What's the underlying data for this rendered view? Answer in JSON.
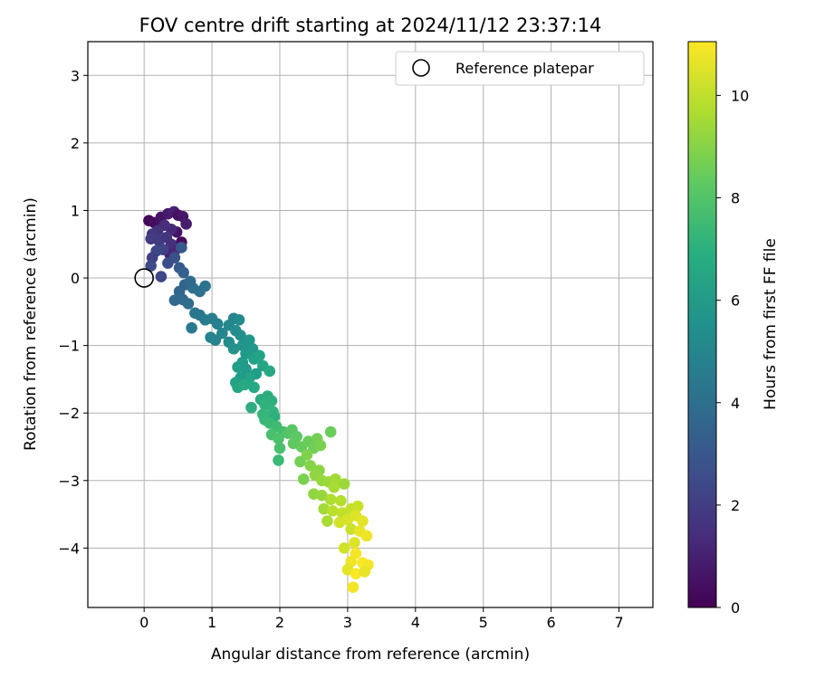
{
  "chart_data": {
    "type": "scatter",
    "title": "FOV centre drift starting at 2024/11/12 23:37:14",
    "xlabel": "Angular distance from reference (arcmin)",
    "ylabel": "Rotation from reference (arcmin)",
    "xlim": [
      -0.83,
      7.5
    ],
    "ylim": [
      -4.88,
      3.5
    ],
    "xticks": [
      "0",
      "1",
      "2",
      "3",
      "4",
      "5",
      "6",
      "7"
    ],
    "yticks": [
      "3",
      "2",
      "1",
      "0",
      "−1",
      "−2",
      "−3",
      "−4"
    ],
    "grid": true,
    "legend": {
      "placement": "top-right",
      "entries": [
        "Reference platepar"
      ]
    },
    "reference_point": {
      "x": 0,
      "y": 0
    },
    "colorbar": {
      "label": "Hours from first FF file",
      "range": [
        0,
        11.05
      ],
      "ticks": [
        "0",
        "2",
        "4",
        "6",
        "8",
        "10"
      ],
      "colormap": "viridis"
    },
    "points": [
      {
        "x": 0.07,
        "y": 0.85,
        "h": 0.2
      },
      {
        "x": 0.15,
        "y": 0.82,
        "h": 0.4
      },
      {
        "x": 0.25,
        "y": 0.9,
        "h": 0.6
      },
      {
        "x": 0.35,
        "y": 0.95,
        "h": 0.8
      },
      {
        "x": 0.44,
        "y": 0.98,
        "h": 1.0
      },
      {
        "x": 0.5,
        "y": 0.93,
        "h": 0.5
      },
      {
        "x": 0.57,
        "y": 0.91,
        "h": 0.7
      },
      {
        "x": 0.62,
        "y": 0.8,
        "h": 0.9
      },
      {
        "x": 0.55,
        "y": 0.53,
        "h": 0.3
      },
      {
        "x": 0.48,
        "y": 0.68,
        "h": 0.6
      },
      {
        "x": 0.4,
        "y": 0.72,
        "h": 1.2
      },
      {
        "x": 0.3,
        "y": 0.78,
        "h": 1.4
      },
      {
        "x": 0.2,
        "y": 0.7,
        "h": 1.6
      },
      {
        "x": 0.12,
        "y": 0.65,
        "h": 1.8
      },
      {
        "x": 0.1,
        "y": 0.58,
        "h": 2.0
      },
      {
        "x": 0.22,
        "y": 0.55,
        "h": 1.9
      },
      {
        "x": 0.33,
        "y": 0.6,
        "h": 1.7
      },
      {
        "x": 0.4,
        "y": 0.5,
        "h": 1.5
      },
      {
        "x": 0.45,
        "y": 0.4,
        "h": 1.3
      },
      {
        "x": 0.38,
        "y": 0.35,
        "h": 1.1
      },
      {
        "x": 0.28,
        "y": 0.42,
        "h": 2.2
      },
      {
        "x": 0.18,
        "y": 0.4,
        "h": 2.4
      },
      {
        "x": 0.12,
        "y": 0.3,
        "h": 2.1
      },
      {
        "x": 0.1,
        "y": 0.18,
        "h": 2.5
      },
      {
        "x": 0.25,
        "y": 0.02,
        "h": 2.3
      },
      {
        "x": 0.35,
        "y": 0.22,
        "h": 2.6
      },
      {
        "x": 0.45,
        "y": 0.3,
        "h": 2.8
      },
      {
        "x": 0.55,
        "y": 0.45,
        "h": 3.0
      },
      {
        "x": 0.52,
        "y": 0.15,
        "h": 3.1
      },
      {
        "x": 0.58,
        "y": 0.08,
        "h": 3.3
      },
      {
        "x": 0.6,
        "y": -0.1,
        "h": 3.5
      },
      {
        "x": 0.52,
        "y": -0.2,
        "h": 3.6
      },
      {
        "x": 0.45,
        "y": -0.33,
        "h": 3.7
      },
      {
        "x": 0.57,
        "y": -0.32,
        "h": 3.8
      },
      {
        "x": 0.65,
        "y": -0.38,
        "h": 3.9
      },
      {
        "x": 0.72,
        "y": -0.15,
        "h": 4.0
      },
      {
        "x": 0.68,
        "y": -0.05,
        "h": 3.8
      },
      {
        "x": 0.82,
        "y": -0.2,
        "h": 4.1
      },
      {
        "x": 0.9,
        "y": -0.12,
        "h": 4.2
      },
      {
        "x": 0.75,
        "y": -0.52,
        "h": 4.3
      },
      {
        "x": 0.7,
        "y": -0.74,
        "h": 4.5
      },
      {
        "x": 0.82,
        "y": -0.55,
        "h": 4.4
      },
      {
        "x": 0.9,
        "y": -0.62,
        "h": 4.6
      },
      {
        "x": 1.0,
        "y": -0.6,
        "h": 4.7
      },
      {
        "x": 1.08,
        "y": -0.68,
        "h": 4.8
      },
      {
        "x": 0.98,
        "y": -0.88,
        "h": 4.9
      },
      {
        "x": 1.05,
        "y": -0.92,
        "h": 5.0
      },
      {
        "x": 1.15,
        "y": -0.82,
        "h": 5.1
      },
      {
        "x": 1.25,
        "y": -0.7,
        "h": 5.2
      },
      {
        "x": 1.32,
        "y": -0.6,
        "h": 5.0
      },
      {
        "x": 1.4,
        "y": -0.62,
        "h": 5.3
      },
      {
        "x": 1.35,
        "y": -0.78,
        "h": 5.4
      },
      {
        "x": 1.42,
        "y": -0.85,
        "h": 5.5
      },
      {
        "x": 1.25,
        "y": -0.95,
        "h": 5.3
      },
      {
        "x": 1.32,
        "y": -1.05,
        "h": 5.6
      },
      {
        "x": 1.45,
        "y": -1.0,
        "h": 5.7
      },
      {
        "x": 1.55,
        "y": -0.92,
        "h": 5.8
      },
      {
        "x": 1.6,
        "y": -1.05,
        "h": 5.9
      },
      {
        "x": 1.5,
        "y": -1.12,
        "h": 6.0
      },
      {
        "x": 1.45,
        "y": -1.25,
        "h": 6.1
      },
      {
        "x": 1.38,
        "y": -1.32,
        "h": 6.2
      },
      {
        "x": 1.5,
        "y": -1.35,
        "h": 6.0
      },
      {
        "x": 1.62,
        "y": -1.2,
        "h": 6.3
      },
      {
        "x": 1.7,
        "y": -1.15,
        "h": 6.4
      },
      {
        "x": 1.75,
        "y": -1.3,
        "h": 6.5
      },
      {
        "x": 1.85,
        "y": -1.38,
        "h": 6.6
      },
      {
        "x": 1.65,
        "y": -1.42,
        "h": 6.2
      },
      {
        "x": 1.55,
        "y": -1.48,
        "h": 6.4
      },
      {
        "x": 1.42,
        "y": -1.48,
        "h": 6.1
      },
      {
        "x": 1.35,
        "y": -1.55,
        "h": 6.3
      },
      {
        "x": 1.38,
        "y": -1.62,
        "h": 6.5
      },
      {
        "x": 1.48,
        "y": -1.58,
        "h": 6.7
      },
      {
        "x": 1.62,
        "y": -1.62,
        "h": 6.6
      },
      {
        "x": 1.72,
        "y": -1.8,
        "h": 6.8
      },
      {
        "x": 1.82,
        "y": -1.75,
        "h": 6.9
      },
      {
        "x": 1.88,
        "y": -1.82,
        "h": 7.0
      },
      {
        "x": 1.78,
        "y": -1.88,
        "h": 7.1
      },
      {
        "x": 1.58,
        "y": -1.92,
        "h": 6.9
      },
      {
        "x": 1.9,
        "y": -1.98,
        "h": 7.2
      },
      {
        "x": 1.75,
        "y": -2.02,
        "h": 7.3
      },
      {
        "x": 1.78,
        "y": -2.1,
        "h": 7.4
      },
      {
        "x": 1.92,
        "y": -2.05,
        "h": 7.0
      },
      {
        "x": 1.85,
        "y": -2.15,
        "h": 7.5
      },
      {
        "x": 1.95,
        "y": -2.2,
        "h": 7.6
      },
      {
        "x": 2.05,
        "y": -2.28,
        "h": 7.7
      },
      {
        "x": 1.88,
        "y": -2.32,
        "h": 7.8
      },
      {
        "x": 1.98,
        "y": -2.38,
        "h": 7.9
      },
      {
        "x": 2.12,
        "y": -2.3,
        "h": 8.0
      },
      {
        "x": 2.18,
        "y": -2.25,
        "h": 8.1
      },
      {
        "x": 2.25,
        "y": -2.35,
        "h": 8.2
      },
      {
        "x": 2.0,
        "y": -2.52,
        "h": 7.8
      },
      {
        "x": 1.98,
        "y": -2.7,
        "h": 7.5
      },
      {
        "x": 2.2,
        "y": -2.45,
        "h": 8.3
      },
      {
        "x": 2.32,
        "y": -2.5,
        "h": 8.4
      },
      {
        "x": 2.42,
        "y": -2.42,
        "h": 8.5
      },
      {
        "x": 2.5,
        "y": -2.52,
        "h": 8.6
      },
      {
        "x": 2.55,
        "y": -2.38,
        "h": 8.7
      },
      {
        "x": 2.6,
        "y": -2.48,
        "h": 8.8
      },
      {
        "x": 2.75,
        "y": -2.28,
        "h": 8.5
      },
      {
        "x": 2.4,
        "y": -2.62,
        "h": 8.9
      },
      {
        "x": 2.3,
        "y": -2.72,
        "h": 8.7
      },
      {
        "x": 2.45,
        "y": -2.78,
        "h": 9.0
      },
      {
        "x": 2.58,
        "y": -2.85,
        "h": 9.1
      },
      {
        "x": 2.35,
        "y": -2.98,
        "h": 8.8
      },
      {
        "x": 2.52,
        "y": -2.92,
        "h": 9.2
      },
      {
        "x": 2.62,
        "y": -3.0,
        "h": 9.3
      },
      {
        "x": 2.72,
        "y": -3.02,
        "h": 9.4
      },
      {
        "x": 2.82,
        "y": -2.98,
        "h": 9.5
      },
      {
        "x": 2.8,
        "y": -3.1,
        "h": 9.6
      },
      {
        "x": 2.95,
        "y": -3.05,
        "h": 9.4
      },
      {
        "x": 2.5,
        "y": -3.2,
        "h": 9.2
      },
      {
        "x": 2.62,
        "y": -3.22,
        "h": 9.3
      },
      {
        "x": 2.75,
        "y": -3.28,
        "h": 9.7
      },
      {
        "x": 2.9,
        "y": -3.3,
        "h": 9.8
      },
      {
        "x": 2.65,
        "y": -3.42,
        "h": 9.5
      },
      {
        "x": 2.78,
        "y": -3.45,
        "h": 9.9
      },
      {
        "x": 2.92,
        "y": -3.48,
        "h": 10.0
      },
      {
        "x": 3.05,
        "y": -3.42,
        "h": 10.1
      },
      {
        "x": 3.15,
        "y": -3.38,
        "h": 10.2
      },
      {
        "x": 2.7,
        "y": -3.6,
        "h": 9.6
      },
      {
        "x": 2.88,
        "y": -3.62,
        "h": 10.3
      },
      {
        "x": 3.0,
        "y": -3.58,
        "h": 10.4
      },
      {
        "x": 3.12,
        "y": -3.52,
        "h": 10.5
      },
      {
        "x": 3.22,
        "y": -3.6,
        "h": 10.6
      },
      {
        "x": 3.05,
        "y": -3.72,
        "h": 10.2
      },
      {
        "x": 3.18,
        "y": -3.75,
        "h": 10.7
      },
      {
        "x": 3.28,
        "y": -3.82,
        "h": 10.8
      },
      {
        "x": 3.1,
        "y": -3.92,
        "h": 10.5
      },
      {
        "x": 2.95,
        "y": -4.0,
        "h": 10.3
      },
      {
        "x": 3.12,
        "y": -4.08,
        "h": 10.9
      },
      {
        "x": 3.05,
        "y": -4.2,
        "h": 10.8
      },
      {
        "x": 3.22,
        "y": -4.22,
        "h": 11.0
      },
      {
        "x": 3.3,
        "y": -4.25,
        "h": 10.9
      },
      {
        "x": 3.0,
        "y": -4.32,
        "h": 10.6
      },
      {
        "x": 3.12,
        "y": -4.38,
        "h": 11.0
      },
      {
        "x": 3.25,
        "y": -4.35,
        "h": 10.7
      },
      {
        "x": 3.08,
        "y": -4.58,
        "h": 10.9
      }
    ]
  }
}
